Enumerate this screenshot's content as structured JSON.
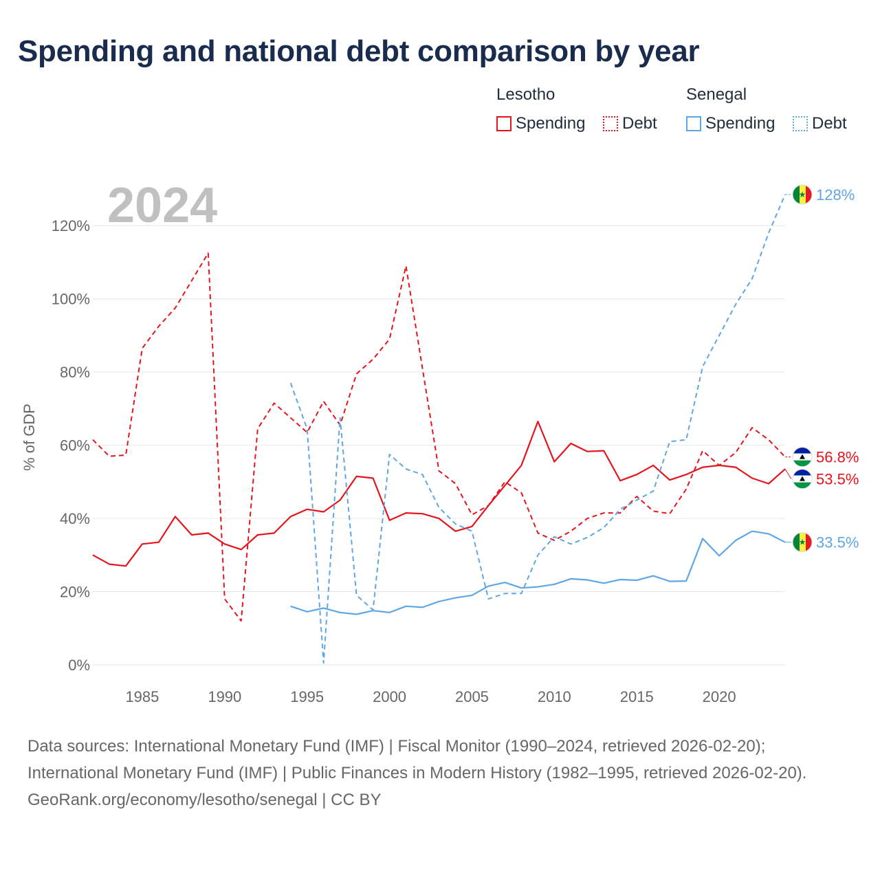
{
  "title": "Spending and national debt comparison by year",
  "legend": {
    "lesotho": {
      "label": "Lesotho",
      "spending": "Spending",
      "debt": "Debt"
    },
    "senegal": {
      "label": "Senegal",
      "spending": "Spending",
      "debt": "Debt"
    }
  },
  "colors": {
    "lesotho": "#e3141b",
    "senegal": "#5ea6e6",
    "year_watermark": "#c0c0c0",
    "grid": "#e6e6e6",
    "axis_text": "#666666"
  },
  "footer": {
    "sources": "Data sources: International Monetary Fund (IMF) | Fiscal Monitor (1990–2024, retrieved 2026-02-20); International Monetary Fund (IMF) | Public Finances in Modern History (1982–1995, retrieved 2026-02-20).",
    "credit": "GeoRank.org/economy/lesotho/senegal | CC BY"
  },
  "chart_data": {
    "type": "line",
    "title": "Spending and national debt comparison by year",
    "year_label": "2024",
    "ylabel": "% of GDP",
    "xlabel": "",
    "xlim": [
      1982,
      2024
    ],
    "ylim": [
      0,
      130
    ],
    "x_ticks": [
      1985,
      1990,
      1995,
      2000,
      2005,
      2010,
      2015,
      2020
    ],
    "x_tick_labels": [
      "1985",
      "1990",
      "1995",
      "2000",
      "2005",
      "2010",
      "2015",
      "2020"
    ],
    "y_ticks": [
      0,
      20,
      40,
      60,
      80,
      100,
      120
    ],
    "y_tick_labels": [
      "0%",
      "20%",
      "40%",
      "60%",
      "80%",
      "100%",
      "120%"
    ],
    "grid": true,
    "legend_position": "top-right",
    "end_labels": [
      {
        "series": "Senegal Debt",
        "flag": "senegal-flag",
        "text": "128%",
        "value": 128.5
      },
      {
        "series": "Lesotho Debt",
        "flag": "lesotho-flag",
        "text": "56.8%",
        "value": 56.8
      },
      {
        "series": "Lesotho Spending",
        "flag": "lesotho-flag",
        "text": "53.5%",
        "value": 53.5
      },
      {
        "series": "Senegal Spending",
        "flag": "senegal-flag",
        "text": "33.5%",
        "value": 33.5
      }
    ],
    "series": [
      {
        "name": "Lesotho Spending",
        "country": "lesotho",
        "style": "solid",
        "x": [
          1982,
          1983,
          1984,
          1985,
          1986,
          1987,
          1988,
          1989,
          1990,
          1991,
          1992,
          1993,
          1994,
          1995,
          1996,
          1997,
          1998,
          1999,
          2000,
          2001,
          2002,
          2003,
          2004,
          2005,
          2006,
          2007,
          2008,
          2009,
          2010,
          2011,
          2012,
          2013,
          2014,
          2015,
          2016,
          2017,
          2018,
          2019,
          2020,
          2021,
          2022,
          2023,
          2024
        ],
        "values": [
          30.0,
          27.5,
          27.0,
          33.0,
          33.5,
          40.5,
          35.5,
          36.0,
          33.0,
          31.5,
          35.5,
          36.0,
          40.5,
          42.5,
          41.8,
          45.0,
          51.5,
          51.0,
          39.5,
          41.5,
          41.3,
          40.0,
          36.5,
          37.8,
          43.5,
          49.0,
          54.5,
          66.5,
          55.5,
          60.5,
          58.3,
          58.5,
          50.3,
          52.0,
          54.5,
          50.5,
          52.0,
          54.0,
          54.5,
          54.0,
          51.0,
          49.5,
          53.5
        ]
      },
      {
        "name": "Lesotho Debt",
        "country": "lesotho",
        "style": "dashed",
        "x": [
          1982,
          1983,
          1984,
          1985,
          1986,
          1987,
          1988,
          1989,
          1990,
          1991,
          1992,
          1993,
          1994,
          1995,
          1996,
          1997,
          1998,
          1999,
          2000,
          2001,
          2002,
          2003,
          2004,
          2005,
          2006,
          2007,
          2008,
          2009,
          2010,
          2011,
          2012,
          2013,
          2014,
          2015,
          2016,
          2017,
          2018,
          2019,
          2020,
          2021,
          2022,
          2023,
          2024
        ],
        "values": [
          61.5,
          57.0,
          57.3,
          86.5,
          92.5,
          97.5,
          105.0,
          112.5,
          18.0,
          12.0,
          64.5,
          71.5,
          67.5,
          63.5,
          72.0,
          65.5,
          79.5,
          83.5,
          89.0,
          109.0,
          81.0,
          53.0,
          49.5,
          41.0,
          43.5,
          50.0,
          47.0,
          36.0,
          34.0,
          36.5,
          40.0,
          41.5,
          41.5,
          46.0,
          42.0,
          41.3,
          48.0,
          58.5,
          54.5,
          58.0,
          64.8,
          61.5,
          56.8
        ]
      },
      {
        "name": "Senegal Spending",
        "country": "senegal",
        "style": "solid",
        "x": [
          1994,
          1995,
          1996,
          1997,
          1998,
          1999,
          2000,
          2001,
          2002,
          2003,
          2004,
          2005,
          2006,
          2007,
          2008,
          2009,
          2010,
          2011,
          2012,
          2013,
          2014,
          2015,
          2016,
          2017,
          2018,
          2019,
          2020,
          2021,
          2022,
          2023,
          2024
        ],
        "values": [
          16.0,
          14.5,
          15.5,
          14.3,
          13.8,
          14.8,
          14.3,
          16.0,
          15.7,
          17.3,
          18.3,
          19.0,
          21.5,
          22.5,
          21.0,
          21.3,
          22.0,
          23.5,
          23.2,
          22.3,
          23.3,
          23.1,
          24.3,
          22.8,
          22.9,
          34.5,
          29.8,
          34.0,
          36.5,
          35.8,
          33.5
        ]
      },
      {
        "name": "Senegal Debt",
        "country": "senegal",
        "style": "dashed",
        "x": [
          1994,
          1995,
          1996,
          1997,
          1998,
          1999,
          2000,
          2001,
          2002,
          2003,
          2004,
          2005,
          2006,
          2007,
          2008,
          2009,
          2010,
          2011,
          2012,
          2013,
          2014,
          2015,
          2016,
          2017,
          2018,
          2019,
          2020,
          2021,
          2022,
          2023,
          2024
        ],
        "values": [
          77.0,
          64.5,
          0.5,
          67.5,
          19.0,
          15.0,
          57.5,
          53.5,
          52.0,
          43.0,
          38.5,
          36.5,
          18.0,
          19.5,
          19.5,
          30.0,
          35.0,
          33.0,
          34.8,
          37.5,
          42.5,
          45.0,
          47.5,
          61.0,
          61.5,
          81.5,
          90.0,
          98.5,
          105.5,
          118.0,
          128.5
        ]
      }
    ]
  }
}
